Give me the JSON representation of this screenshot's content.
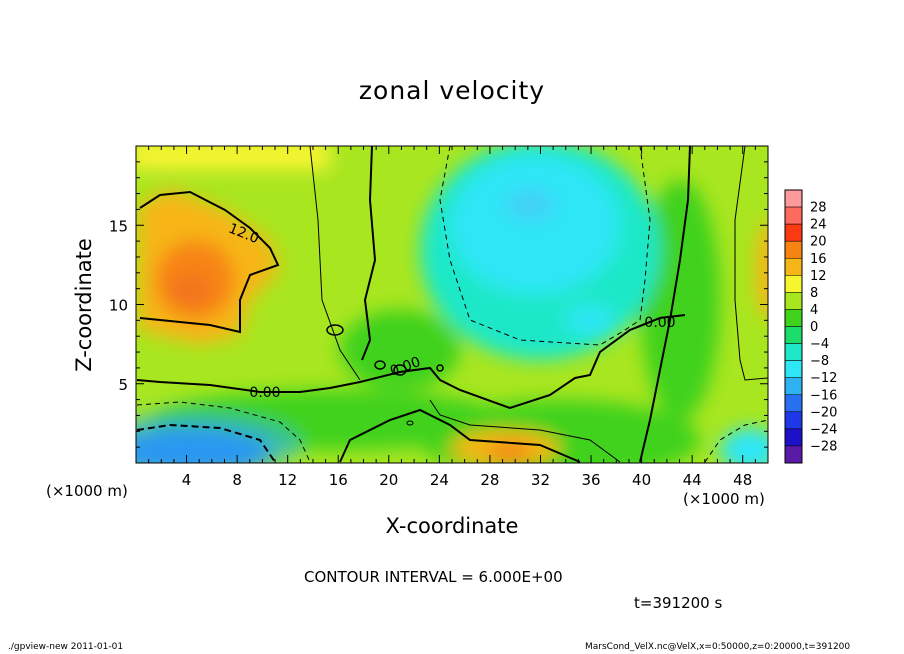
{
  "chart_data": {
    "type": "heatmap",
    "title": "zonal velocity",
    "xlabel": "X-coordinate",
    "ylabel": "Z-coordinate",
    "x_unit_label": "(×1000 m)",
    "xlim": [
      0,
      50
    ],
    "ylim": [
      0,
      20
    ],
    "x_ticks": [
      4,
      8,
      12,
      16,
      20,
      24,
      28,
      32,
      36,
      40,
      44,
      48
    ],
    "y_ticks": [
      5,
      10,
      15
    ],
    "colorbar": {
      "levels": [
        28,
        24,
        20,
        16,
        12,
        8,
        4,
        0,
        -4,
        -8,
        -12,
        -16,
        -20,
        -24,
        -28
      ],
      "colors": [
        "#ff9a9a",
        "#ff6a5e",
        "#fb3a12",
        "#f78412",
        "#f7b618",
        "#f7f430",
        "#a8e620",
        "#41d21e",
        "#1ddd6a",
        "#1fe8c8",
        "#2ee6f6",
        "#2fb2f2",
        "#2870f0",
        "#1e38e8",
        "#1c10c8",
        "#5a1aa8"
      ]
    },
    "contour_labels": [
      "12.0",
      "0.00",
      "0.00",
      "0.00"
    ],
    "contour_interval_text": "CONTOUR INTERVAL = 6.000E+00",
    "time_text": "t=391200 s"
  },
  "footer": {
    "left": "./gpview-new  2011-01-01",
    "right": "MarsCond_VelX.nc@VelX,x=0:50000,z=0:20000,t=391200"
  }
}
